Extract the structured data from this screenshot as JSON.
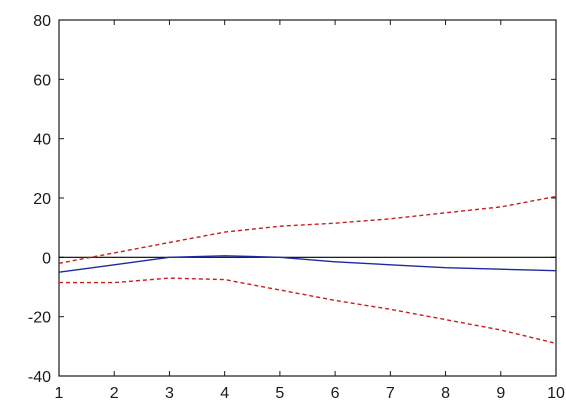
{
  "chart_data": {
    "type": "line",
    "title": "",
    "xlabel": "",
    "ylabel": "",
    "x": [
      1,
      2,
      3,
      4,
      5,
      6,
      7,
      8,
      9,
      10
    ],
    "xlim": [
      1,
      10
    ],
    "ylim": [
      -40,
      80
    ],
    "xticks": [
      "1",
      "2",
      "3",
      "4",
      "5",
      "6",
      "7",
      "8",
      "9",
      "10"
    ],
    "yticks": [
      -40,
      -20,
      0,
      20,
      40,
      60,
      80
    ],
    "grid": false,
    "reference_line": {
      "y": 0,
      "color": "#000000"
    },
    "series": [
      {
        "style": "solid",
        "color": "#1f2a9e",
        "values": [
          -5,
          -2.5,
          0,
          0.5,
          0,
          -1.5,
          -2.5,
          -3.5,
          -4,
          -4.5
        ]
      },
      {
        "style": "dashed",
        "color": "#c81e1e",
        "values": [
          -2,
          1.5,
          5,
          8.5,
          10.5,
          11.5,
          13,
          15,
          17,
          20.5
        ]
      },
      {
        "style": "dashed",
        "color": "#c81e1e",
        "values": [
          -8.5,
          -8.5,
          -7,
          -7.5,
          -11,
          -14.5,
          -17.5,
          -21,
          -24.5,
          -29
        ]
      }
    ]
  }
}
